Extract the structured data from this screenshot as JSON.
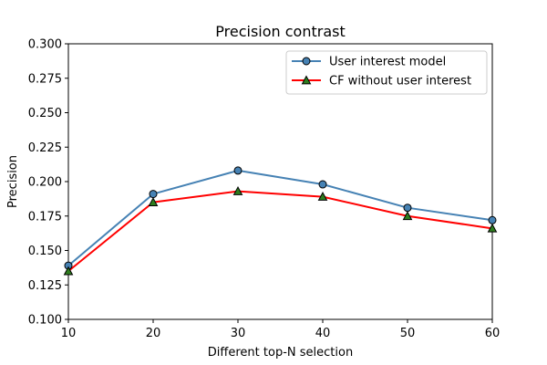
{
  "chart_data": {
    "type": "line",
    "title": "Precision contrast",
    "xlabel": "Different top-N selection",
    "ylabel": "Precision",
    "x": [
      10,
      20,
      30,
      40,
      50,
      60
    ],
    "xlim": [
      10,
      60
    ],
    "ylim": [
      0.1,
      0.3
    ],
    "xticks": [
      10,
      20,
      30,
      40,
      50,
      60
    ],
    "xtick_labels": [
      "10",
      "20",
      "30",
      "40",
      "50",
      "60"
    ],
    "yticks": [
      0.1,
      0.125,
      0.15,
      0.175,
      0.2,
      0.225,
      0.25,
      0.275,
      0.3
    ],
    "ytick_labels": [
      "0.100",
      "0.125",
      "0.150",
      "0.175",
      "0.200",
      "0.225",
      "0.250",
      "0.275",
      "0.300"
    ],
    "grid": false,
    "legend_position": "top-right",
    "series": [
      {
        "name": "User interest model",
        "values": [
          0.139,
          0.191,
          0.208,
          0.198,
          0.181,
          0.172
        ],
        "color": "#4682b4",
        "marker": "circle",
        "marker_fill": "#4682b4"
      },
      {
        "name": "CF without user interest",
        "values": [
          0.135,
          0.185,
          0.193,
          0.189,
          0.175,
          0.166
        ],
        "color": "#ff0000",
        "marker": "triangle",
        "marker_fill": "#2e7d1e"
      }
    ]
  }
}
